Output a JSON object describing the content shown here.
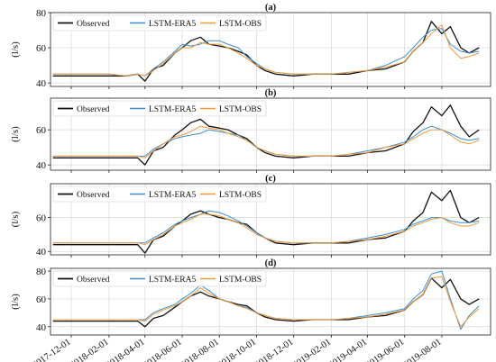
{
  "colors": {
    "observed": "#111111",
    "lstm_era5": "#3b8fd1",
    "lstm_obs": "#f09a3a",
    "grid": "#d9d9d9",
    "axis": "#222222"
  },
  "chart_data": [
    {
      "type": "line",
      "title": "(a)",
      "ylabel": "(l/s)",
      "xlabel": "",
      "ylim": [
        38,
        80
      ],
      "yticks": [
        40,
        60,
        80
      ],
      "grid": true,
      "legend": "top-left",
      "xlim": [
        "2017-10-28",
        "2019-10-20"
      ],
      "x": [
        "2017-11-01",
        "2017-12-01",
        "2018-01-01",
        "2018-02-01",
        "2018-03-01",
        "2018-03-20",
        "2018-04-01",
        "2018-04-15",
        "2018-05-01",
        "2018-05-20",
        "2018-06-01",
        "2018-06-15",
        "2018-07-01",
        "2018-07-15",
        "2018-08-01",
        "2018-08-15",
        "2018-09-01",
        "2018-09-15",
        "2018-10-01",
        "2018-10-15",
        "2018-11-01",
        "2018-12-01",
        "2019-01-01",
        "2019-02-01",
        "2019-03-01",
        "2019-04-01",
        "2019-05-01",
        "2019-06-01",
        "2019-06-15",
        "2019-07-01",
        "2019-07-15",
        "2019-08-01",
        "2019-08-15",
        "2019-09-01",
        "2019-09-15",
        "2019-10-01"
      ],
      "series": [
        {
          "name": "Observed",
          "values": [
            44,
            44,
            44,
            44,
            44,
            45,
            41,
            48,
            50,
            57,
            60,
            64,
            66,
            62,
            61,
            60,
            58,
            56,
            50,
            47,
            45,
            44,
            45,
            45,
            45,
            47,
            48,
            52,
            58,
            63,
            75,
            68,
            72,
            60,
            57,
            60
          ]
        },
        {
          "name": "LSTM-ERA5",
          "values": [
            45,
            45,
            45,
            45,
            44,
            45,
            44,
            48,
            52,
            58,
            62,
            61,
            62,
            64,
            64,
            62,
            60,
            55,
            51,
            48,
            46,
            45,
            45,
            45,
            46,
            47,
            50,
            55,
            60,
            66,
            70,
            71,
            62,
            58,
            57,
            58
          ]
        },
        {
          "name": "LSTM-OBS",
          "values": [
            45,
            45,
            45,
            45,
            44,
            45,
            44,
            47,
            51,
            57,
            60,
            60,
            63,
            62,
            62,
            60,
            57,
            54,
            50,
            48,
            46,
            45,
            45,
            45,
            46,
            47,
            49,
            52,
            58,
            63,
            68,
            73,
            60,
            54,
            55,
            57
          ]
        }
      ]
    },
    {
      "type": "line",
      "title": "(b)",
      "ylabel": "(l/s)",
      "xlabel": "",
      "ylim": [
        37,
        78
      ],
      "yticks": [
        40,
        60
      ],
      "grid": true,
      "legend": "top-left",
      "xlim": [
        "2017-10-28",
        "2019-10-20"
      ],
      "x": [
        "2017-11-01",
        "2017-12-01",
        "2018-01-01",
        "2018-02-01",
        "2018-03-01",
        "2018-03-20",
        "2018-04-01",
        "2018-04-15",
        "2018-05-01",
        "2018-05-20",
        "2018-06-01",
        "2018-06-15",
        "2018-07-01",
        "2018-07-15",
        "2018-08-01",
        "2018-08-15",
        "2018-09-01",
        "2018-09-15",
        "2018-10-01",
        "2018-10-15",
        "2018-11-01",
        "2018-12-01",
        "2019-01-01",
        "2019-02-01",
        "2019-03-01",
        "2019-04-01",
        "2019-05-01",
        "2019-06-01",
        "2019-06-15",
        "2019-07-01",
        "2019-07-15",
        "2019-08-01",
        "2019-08-15",
        "2019-09-01",
        "2019-09-15",
        "2019-10-01"
      ],
      "series": [
        {
          "name": "Observed",
          "values": [
            44,
            44,
            44,
            44,
            44,
            44,
            40,
            48,
            50,
            57,
            60,
            64,
            66,
            62,
            61,
            60,
            57,
            55,
            50,
            47,
            45,
            44,
            45,
            45,
            45,
            47,
            48,
            52,
            59,
            64,
            73,
            68,
            74,
            62,
            56,
            60
          ]
        },
        {
          "name": "LSTM-ERA5",
          "values": [
            45,
            45,
            45,
            45,
            45,
            45,
            45,
            49,
            52,
            55,
            56,
            57,
            58,
            60,
            59,
            58,
            57,
            54,
            50,
            48,
            46,
            45,
            45,
            45,
            46,
            48,
            50,
            53,
            56,
            60,
            62,
            60,
            58,
            55,
            54,
            55
          ]
        },
        {
          "name": "LSTM-OBS",
          "values": [
            45,
            45,
            45,
            45,
            45,
            45,
            44,
            48,
            52,
            56,
            57,
            59,
            62,
            61,
            60,
            58,
            56,
            54,
            50,
            48,
            46,
            45,
            45,
            45,
            46,
            47,
            50,
            52,
            55,
            58,
            60,
            60,
            57,
            53,
            52,
            54
          ]
        }
      ]
    },
    {
      "type": "line",
      "title": "(c)",
      "ylabel": "(l/s)",
      "xlabel": "",
      "ylim": [
        38,
        80
      ],
      "yticks": [
        40,
        60
      ],
      "grid": true,
      "legend": "top-left",
      "xlim": [
        "2017-10-28",
        "2019-10-20"
      ],
      "x": [
        "2017-11-01",
        "2017-12-01",
        "2018-01-01",
        "2018-02-01",
        "2018-03-01",
        "2018-03-20",
        "2018-04-01",
        "2018-04-15",
        "2018-05-01",
        "2018-05-20",
        "2018-06-01",
        "2018-06-15",
        "2018-07-01",
        "2018-07-15",
        "2018-08-01",
        "2018-08-15",
        "2018-09-01",
        "2018-09-15",
        "2018-10-01",
        "2018-10-15",
        "2018-11-01",
        "2018-12-01",
        "2019-01-01",
        "2019-02-01",
        "2019-03-01",
        "2019-04-01",
        "2019-05-01",
        "2019-06-01",
        "2019-06-15",
        "2019-07-01",
        "2019-07-15",
        "2019-08-01",
        "2019-08-15",
        "2019-09-01",
        "2019-09-15",
        "2019-10-01"
      ],
      "series": [
        {
          "name": "Observed",
          "values": [
            44,
            44,
            44,
            44,
            44,
            44,
            39,
            47,
            49,
            55,
            58,
            62,
            64,
            62,
            60,
            59,
            57,
            56,
            51,
            48,
            45,
            44,
            45,
            45,
            45,
            47,
            48,
            52,
            58,
            63,
            75,
            70,
            76,
            60,
            57,
            60
          ]
        },
        {
          "name": "LSTM-ERA5",
          "values": [
            45,
            45,
            45,
            45,
            45,
            45,
            45,
            48,
            51,
            56,
            58,
            60,
            62,
            64,
            63,
            61,
            58,
            55,
            51,
            48,
            46,
            45,
            45,
            45,
            46,
            48,
            50,
            53,
            56,
            58,
            60,
            60,
            58,
            57,
            57,
            58
          ]
        },
        {
          "name": "LSTM-OBS",
          "values": [
            45,
            45,
            45,
            45,
            45,
            45,
            44,
            47,
            50,
            55,
            57,
            59,
            62,
            62,
            61,
            59,
            57,
            54,
            50,
            48,
            46,
            45,
            45,
            45,
            46,
            47,
            49,
            52,
            55,
            57,
            59,
            60,
            57,
            55,
            55,
            57
          ]
        }
      ]
    },
    {
      "type": "line",
      "title": "(d)",
      "ylabel": "(l/s)",
      "xlabel": "",
      "ylim": [
        34,
        82
      ],
      "yticks": [
        40,
        60,
        80
      ],
      "grid": true,
      "legend": "top-left",
      "xlim": [
        "2017-10-28",
        "2019-10-20"
      ],
      "xticks": [
        "2017-12-01",
        "2018-02-01",
        "2018-04-01",
        "2018-06-01",
        "2018-08-01",
        "2018-10-01",
        "2018-12-01",
        "2019-02-01",
        "2019-04-01",
        "2019-06-01",
        "2019-08-01"
      ],
      "x": [
        "2017-11-01",
        "2017-12-01",
        "2018-01-01",
        "2018-02-01",
        "2018-03-01",
        "2018-03-20",
        "2018-04-01",
        "2018-04-15",
        "2018-05-01",
        "2018-05-20",
        "2018-06-01",
        "2018-06-15",
        "2018-07-01",
        "2018-07-15",
        "2018-08-01",
        "2018-08-15",
        "2018-09-01",
        "2018-09-15",
        "2018-10-01",
        "2018-10-15",
        "2018-11-01",
        "2018-12-01",
        "2019-01-01",
        "2019-02-01",
        "2019-03-01",
        "2019-04-01",
        "2019-05-01",
        "2019-06-01",
        "2019-06-15",
        "2019-07-01",
        "2019-07-15",
        "2019-08-01",
        "2019-08-15",
        "2019-09-01",
        "2019-09-15",
        "2019-10-01"
      ],
      "series": [
        {
          "name": "Observed",
          "values": [
            44,
            44,
            44,
            44,
            44,
            44,
            40,
            46,
            48,
            54,
            58,
            62,
            65,
            62,
            60,
            58,
            56,
            55,
            50,
            47,
            45,
            44,
            45,
            45,
            45,
            47,
            48,
            52,
            58,
            63,
            75,
            68,
            74,
            60,
            56,
            60
          ]
        },
        {
          "name": "LSTM-ERA5",
          "values": [
            45,
            45,
            45,
            45,
            45,
            45,
            45,
            50,
            53,
            56,
            60,
            64,
            70,
            66,
            60,
            58,
            55,
            54,
            50,
            48,
            46,
            45,
            45,
            45,
            46,
            48,
            50,
            53,
            60,
            66,
            78,
            80,
            60,
            38,
            48,
            55
          ]
        },
        {
          "name": "LSTM-OBS",
          "values": [
            45,
            45,
            45,
            45,
            45,
            45,
            44,
            49,
            52,
            55,
            58,
            62,
            68,
            64,
            60,
            58,
            55,
            53,
            50,
            48,
            46,
            45,
            45,
            45,
            46,
            47,
            49,
            52,
            58,
            63,
            75,
            76,
            58,
            40,
            47,
            53
          ]
        }
      ]
    }
  ]
}
